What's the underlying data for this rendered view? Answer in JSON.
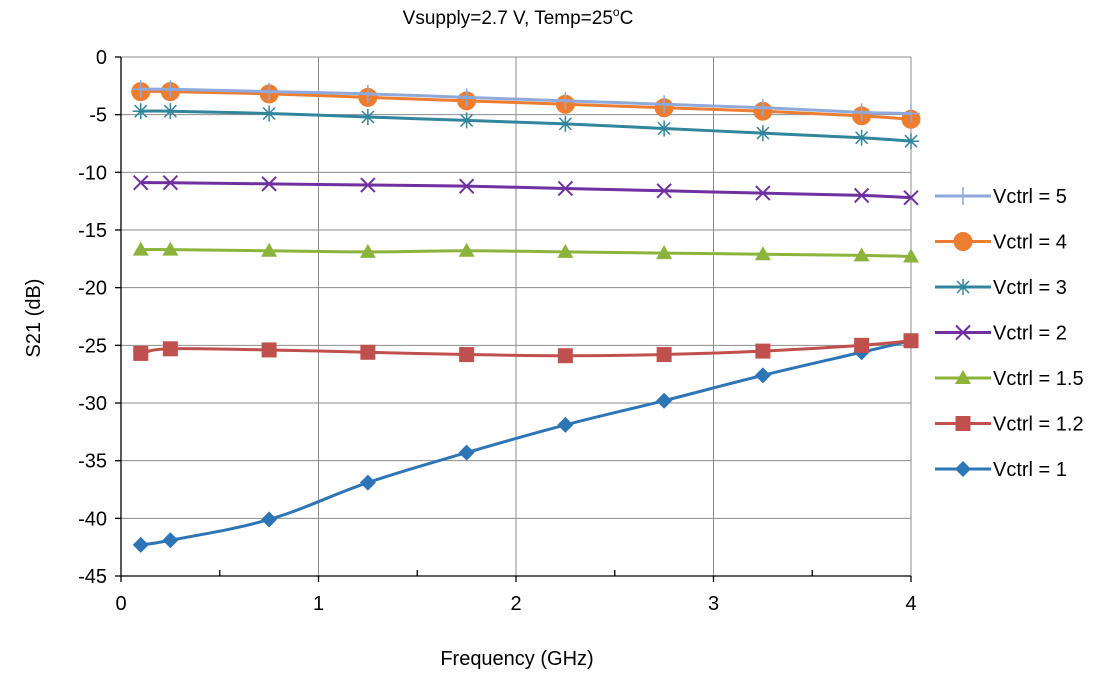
{
  "chart_data": {
    "type": "line",
    "title": "Vsupply=2.7 V, Temp=25",
    "title_sup": "o",
    "title_suffix": "C",
    "xlabel": "Frequency (GHz)",
    "ylabel": "S21 (dB)",
    "xlim": [
      0,
      4
    ],
    "ylim": [
      -45,
      0
    ],
    "xticks": [
      0,
      1,
      2,
      3,
      4
    ],
    "yticks": [
      0,
      -5,
      -10,
      -15,
      -20,
      -25,
      -30,
      -35,
      -40,
      -45
    ],
    "x_minor_step": 0.5,
    "grid": "vertical-major",
    "legend_position": "right",
    "x": [
      0.1,
      0.25,
      0.75,
      1.25,
      1.75,
      2.25,
      2.75,
      3.25,
      3.75,
      4.0
    ],
    "series": [
      {
        "name": "Vctrl = 5",
        "color": "#8EA9DB",
        "marker": "plus",
        "values": [
          -2.8,
          -2.8,
          -3.0,
          -3.2,
          -3.5,
          -3.8,
          -4.1,
          -4.4,
          -4.8,
          -4.9
        ]
      },
      {
        "name": "Vctrl = 4",
        "color": "#ED7D31",
        "marker": "circle",
        "values": [
          -3.0,
          -3.0,
          -3.2,
          -3.5,
          -3.8,
          -4.1,
          -4.4,
          -4.7,
          -5.1,
          -5.4
        ]
      },
      {
        "name": "Vctrl = 3",
        "color": "#31859C",
        "marker": "asterisk",
        "values": [
          -4.7,
          -4.7,
          -4.9,
          -5.2,
          -5.5,
          -5.8,
          -6.2,
          -6.6,
          -7.0,
          -7.3
        ]
      },
      {
        "name": "Vctrl = 2",
        "color": "#7030A0",
        "marker": "x",
        "values": [
          -10.9,
          -10.9,
          -11.0,
          -11.1,
          -11.2,
          -11.4,
          -11.6,
          -11.8,
          -12.0,
          -12.2
        ]
      },
      {
        "name": "Vctrl = 1.5",
        "color": "#8CB43C",
        "marker": "triangle",
        "values": [
          -16.7,
          -16.7,
          -16.8,
          -16.9,
          -16.8,
          -16.9,
          -17.0,
          -17.1,
          -17.2,
          -17.3
        ]
      },
      {
        "name": "Vctrl = 1.2",
        "color": "#C0504D",
        "marker": "square",
        "values": [
          -25.7,
          -25.3,
          -25.4,
          -25.6,
          -25.8,
          -25.9,
          -25.8,
          -25.5,
          -25.0,
          -24.6
        ]
      },
      {
        "name": "Vctrl = 1",
        "color": "#2E75B6",
        "marker": "diamond",
        "values": [
          -42.3,
          -41.9,
          -40.1,
          -36.9,
          -34.3,
          -31.9,
          -29.8,
          -27.6,
          -25.6,
          -24.6
        ]
      }
    ]
  }
}
